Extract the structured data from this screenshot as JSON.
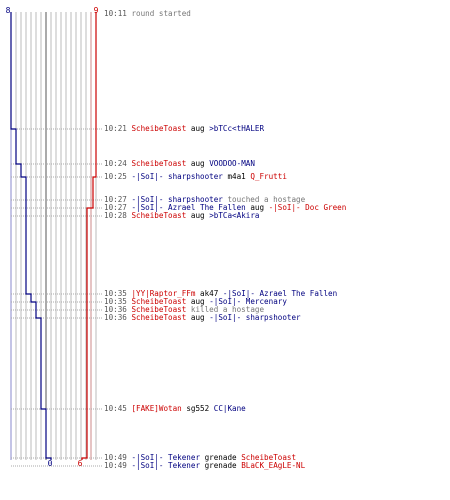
{
  "scores": {
    "blue_start": "8",
    "red_start": "9",
    "blue_end": "0",
    "red_end": "6"
  },
  "colors": {
    "red": "#cc0000",
    "blue": "#000080",
    "timestamp": "#555555",
    "action": "#777777"
  },
  "events": [
    {
      "time": "10:11",
      "parts": [
        {
          "text": "round started",
          "role": "action"
        }
      ]
    },
    {
      "time": "10:21",
      "parts": [
        {
          "text": "ScheibeToast",
          "role": "red"
        },
        {
          "text": "aug",
          "role": "weapon"
        },
        {
          "text": ">bTCc<tHALER",
          "role": "blue"
        }
      ]
    },
    {
      "time": "10:24",
      "parts": [
        {
          "text": "ScheibeToast",
          "role": "red"
        },
        {
          "text": "aug",
          "role": "weapon"
        },
        {
          "text": "VOODOO-MAN",
          "role": "blue"
        }
      ]
    },
    {
      "time": "10:25",
      "parts": [
        {
          "text": "-|SoI|- sharpshooter",
          "role": "blue"
        },
        {
          "text": "m4a1",
          "role": "weapon"
        },
        {
          "text": "Q_Frutti",
          "role": "red"
        }
      ]
    },
    {
      "time": "10:27",
      "parts": [
        {
          "text": "-|SoI|- sharpshooter",
          "role": "blue"
        },
        {
          "text": "touched a hostage",
          "role": "action"
        }
      ]
    },
    {
      "time": "10:27",
      "parts": [
        {
          "text": "-|SoI|- Azrael The Fallen",
          "role": "blue"
        },
        {
          "text": "aug",
          "role": "weapon"
        },
        {
          "text": "-|SoI|- Doc Green",
          "role": "red"
        }
      ]
    },
    {
      "time": "10:28",
      "parts": [
        {
          "text": "ScheibeToast",
          "role": "red"
        },
        {
          "text": "aug",
          "role": "weapon"
        },
        {
          "text": ">bTCa<Akira",
          "role": "blue"
        }
      ]
    },
    {
      "time": "10:35",
      "parts": [
        {
          "text": "|YY|Raptor_FFm",
          "role": "red"
        },
        {
          "text": "ak47",
          "role": "weapon"
        },
        {
          "text": "-|SoI|- Azrael The Fallen",
          "role": "blue"
        }
      ]
    },
    {
      "time": "10:35",
      "parts": [
        {
          "text": "ScheibeToast",
          "role": "red"
        },
        {
          "text": "aug",
          "role": "weapon"
        },
        {
          "text": "-|SoI|- Mercenary",
          "role": "blue"
        }
      ]
    },
    {
      "time": "10:36",
      "parts": [
        {
          "text": "ScheibeToast",
          "role": "red"
        },
        {
          "text": "killed a hostage",
          "role": "action"
        }
      ]
    },
    {
      "time": "10:36",
      "parts": [
        {
          "text": "ScheibeToast",
          "role": "red"
        },
        {
          "text": "aug",
          "role": "weapon"
        },
        {
          "text": "-|SoI|- sharpshooter",
          "role": "blue"
        }
      ]
    },
    {
      "time": "10:45",
      "parts": [
        {
          "text": "[FAKE]Wotan",
          "role": "red"
        },
        {
          "text": "sg552",
          "role": "weapon"
        },
        {
          "text": "CC|Kane",
          "role": "blue"
        }
      ]
    },
    {
      "time": "10:49",
      "parts": [
        {
          "text": "-|SoI|- Tekener",
          "role": "blue"
        },
        {
          "text": "grenade",
          "role": "weapon"
        },
        {
          "text": "ScheibeToast",
          "role": "red"
        }
      ]
    },
    {
      "time": "10:49",
      "parts": [
        {
          "text": "-|SoI|- Tekener",
          "role": "blue"
        },
        {
          "text": "grenade",
          "role": "weapon"
        },
        {
          "text": "BLaCK_EAgLE-NL",
          "role": "red"
        }
      ]
    }
  ],
  "chart_data": {
    "type": "line",
    "series": [
      {
        "color": "#000080",
        "steps": [
          8,
          7,
          6,
          5,
          4,
          3,
          2,
          1,
          0
        ]
      },
      {
        "color": "#cc0000",
        "steps": [
          9,
          8,
          7,
          6
        ]
      }
    ]
  }
}
